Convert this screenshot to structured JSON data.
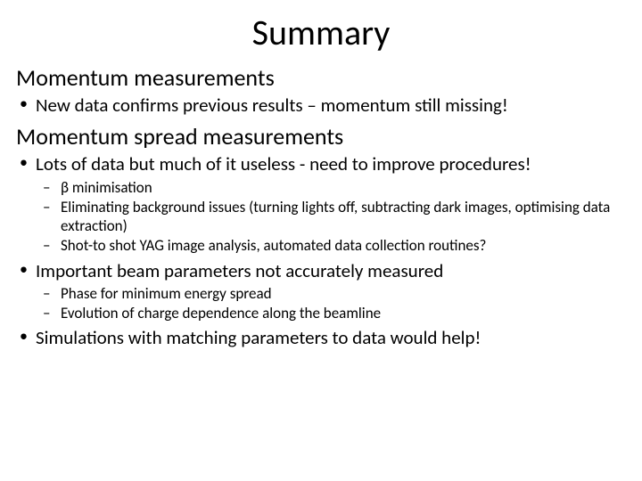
{
  "title": "Summary",
  "sections": [
    {
      "heading": "Momentum measurements",
      "bullets": [
        {
          "text": "New data confirms previous results – momentum still missing!",
          "sub": []
        }
      ]
    },
    {
      "heading": "Momentum spread measurements",
      "bullets": [
        {
          "text": "Lots of data but much of it useless - need to improve procedures!",
          "sub": [
            "β minimisation",
            "Eliminating background issues (turning lights off, subtracting dark images, optimising data extraction)",
            "Shot-to shot YAG image analysis, automated data collection routines?"
          ]
        },
        {
          "text": "Important beam parameters not accurately measured",
          "sub": [
            "Phase for minimum energy spread",
            "Evolution of charge dependence along the beamline"
          ]
        },
        {
          "text": "Simulations with matching parameters to data would help!",
          "sub": []
        }
      ]
    }
  ],
  "colors": {
    "background": "#ffffff",
    "text": "#000000"
  },
  "typography": {
    "title_fontsize": 40,
    "heading_fontsize": 26,
    "bullet_fontsize": 21,
    "subbullet_fontsize": 17,
    "font_family": "Calibri"
  }
}
